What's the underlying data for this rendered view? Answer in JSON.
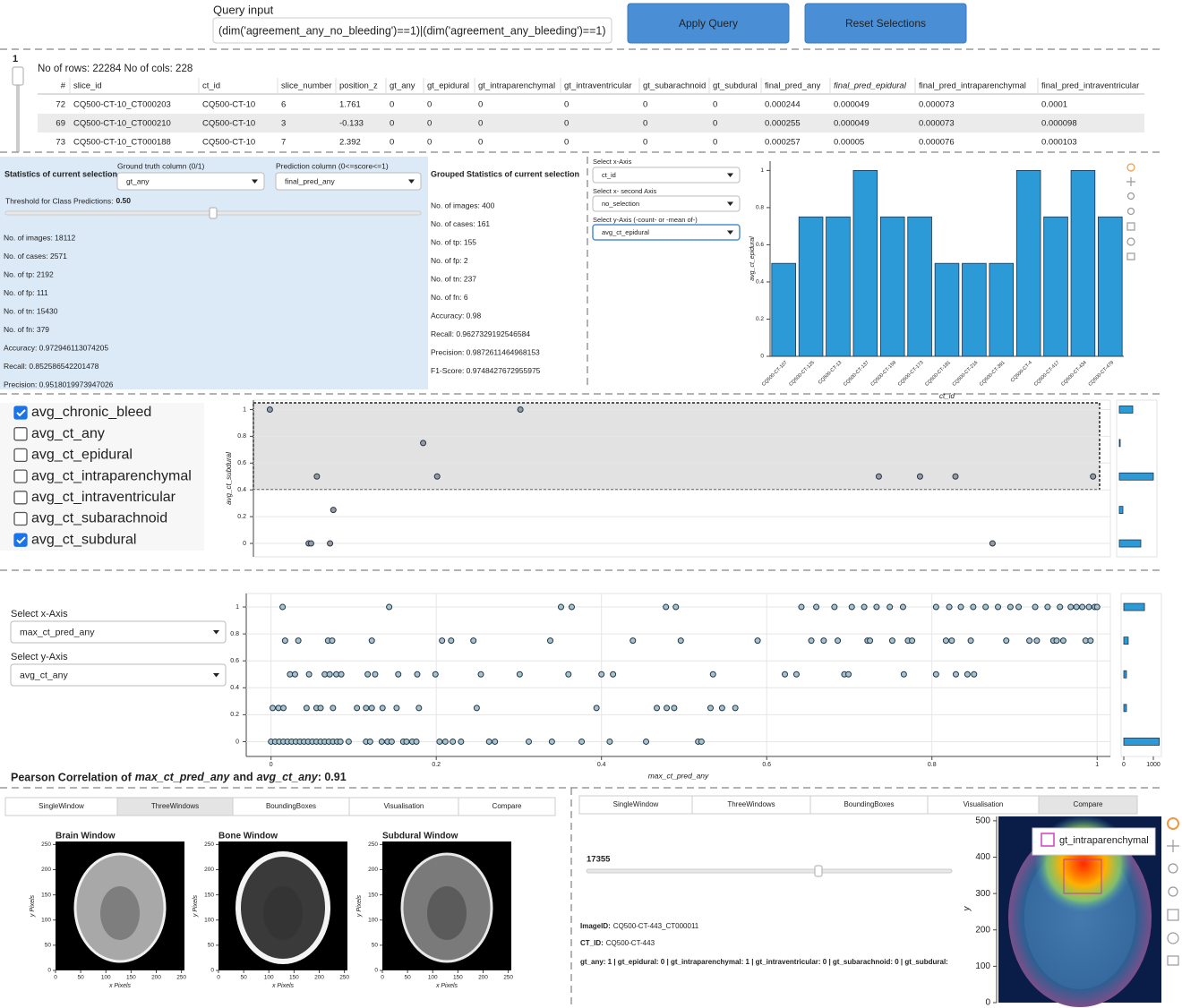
{
  "query": {
    "label": "Query input",
    "value": "(dim('agreement_any_no_bleeding')==1)|(dim('agreement_any_bleeding')==1)",
    "apply": "Apply Query",
    "reset": "Reset Selections"
  },
  "table": {
    "page": "1",
    "summary": "No of rows: 22284 No of cols: 228",
    "columns": [
      "#",
      "slice_id",
      "ct_id",
      "slice_number",
      "position_z",
      "gt_any",
      "gt_epidural",
      "gt_intraparenchymal",
      "gt_intraventricular",
      "gt_subarachnoid",
      "gt_subdural",
      "final_pred_any",
      "final_pred_epidural",
      "final_pred_intraparenchymal",
      "final_pred_intraventricular"
    ],
    "rows": [
      [
        "72",
        "CQ500-CT-10_CT000203",
        "CQ500-CT-10",
        "6",
        "1.761",
        "0",
        "0",
        "0",
        "0",
        "0",
        "0",
        "0.000244",
        "0.000049",
        "0.000073",
        "0.0001"
      ],
      [
        "69",
        "CQ500-CT-10_CT000210",
        "CQ500-CT-10",
        "3",
        "-0.133",
        "0",
        "0",
        "0",
        "0",
        "0",
        "0",
        "0.000255",
        "0.000049",
        "0.000073",
        "0.000098"
      ],
      [
        "73",
        "CQ500-CT-10_CT000188",
        "CQ500-CT-10",
        "7",
        "2.392",
        "0",
        "0",
        "0",
        "0",
        "0",
        "0",
        "0.000257",
        "0.00005",
        "0.000076",
        "0.000103"
      ]
    ]
  },
  "stats": {
    "title": "Statistics of current selection",
    "gt_label": "Ground truth column (0/1)",
    "gt_value": "gt_any",
    "pred_label": "Prediction column (0<=score<=1)",
    "pred_value": "final_pred_any",
    "threshold_label": "Threshold for Class Predictions:",
    "threshold": {
      "value": 0.5,
      "label": "0.50"
    },
    "items": [
      "No. of images: 18112",
      "No. of cases: 2571",
      "No. of tp: 2192",
      "No. of fp: 111",
      "No. of tn: 15430",
      "No. of fn: 379",
      "Accuracy: 0.972946113074205",
      "Recall: 0.852586542201478",
      "Precision: 0.9518019973947026"
    ]
  },
  "grouped_stats": {
    "title": "Grouped Statistics of current selection",
    "items": [
      "No. of images: 400",
      "No. of cases: 161",
      "No. of tp: 155",
      "No. of fp: 2",
      "No. of tn: 237",
      "No. of fn: 6",
      "Accuracy: 0.98",
      "Recall: 0.9627329192546584",
      "Precision: 0.9872611464968153",
      "F1-Score: 0.9748427672955975"
    ]
  },
  "bar_controls": {
    "x_label": "Select x-Axis",
    "x_value": "ct_id",
    "x2_label": "Select x- second Axis",
    "x2_value": "no_selection",
    "y_label": "Select y-Axis (-count- or -mean of-)",
    "y_value": "avg_ct_epidural"
  },
  "checkboxes": [
    {
      "label": "avg_chronic_bleed",
      "checked": true
    },
    {
      "label": "avg_ct_any",
      "checked": false
    },
    {
      "label": "avg_ct_epidural",
      "checked": false
    },
    {
      "label": "avg_ct_intraparenchymal",
      "checked": false
    },
    {
      "label": "avg_ct_intraventricular",
      "checked": false
    },
    {
      "label": "avg_ct_subarachnoid",
      "checked": false
    },
    {
      "label": "avg_ct_subdural",
      "checked": true
    }
  ],
  "scatter_controls": {
    "x_label": "Select x-Axis",
    "x_value": "max_ct_pred_any",
    "y_label": "Select y-Axis",
    "y_value": "avg_ct_any"
  },
  "pearson": {
    "prefix": "Pearson Correlation of",
    "x_name": "max_ct_pred_any",
    "joiner": "and",
    "y_name": "avg_ct_any",
    "suffix": ": 0.91"
  },
  "viewer_left": {
    "tabs": [
      "SingleWindow",
      "ThreeWindows",
      "BoundingBoxes",
      "Visualisation",
      "Compare"
    ],
    "active": 1,
    "panels": [
      "Brain Window",
      "Bone Window",
      "Subdural Window"
    ],
    "x_label": "x Pixels",
    "y_label": "y Pixels",
    "xlim": [
      0,
      256
    ],
    "ylim": [
      0,
      256
    ],
    "xticks": [
      0,
      50,
      100,
      150,
      200,
      250
    ],
    "yticks": [
      0,
      50,
      100,
      150,
      200,
      250
    ]
  },
  "viewer_right": {
    "tabs": [
      "SingleWindow",
      "ThreeWindows",
      "BoundingBoxes",
      "Visualisation",
      "Compare"
    ],
    "active": 4,
    "slider": "17355",
    "image_id_label": "ImageID:",
    "image_id": "CQ500-CT-443_CT000011",
    "ct_id_label": "CT_ID:",
    "ct_id": "CQ500-CT-443",
    "labels": "gt_any: 1 | gt_epidural: 0 | gt_intraparenchymal: 1 | gt_intraventricular: 0 | gt_subarachnoid: 0 | gt_subdural:",
    "y_label": "y",
    "ylim": [
      0,
      512
    ],
    "yticks": [
      0,
      100,
      200,
      300,
      400,
      500
    ],
    "legend": "gt_intraparenchymal"
  },
  "chart_data": [
    {
      "type": "bar",
      "categories": [
        "CQ500-CT-107",
        "CQ500-CT-125",
        "CQ500-CT-13",
        "CQ500-CT-137",
        "CQ500-CT-159",
        "CQ500-CT-173",
        "CQ500-CT-181",
        "CQ500-CT-216",
        "CQ500-CT-391",
        "CQ500-CT-4",
        "CQ500-CT-417",
        "CQ500-CT-434",
        "CQ500-CT-479"
      ],
      "values": [
        0.5,
        0.75,
        0.75,
        1,
        0.75,
        0.75,
        0.5,
        0.5,
        0.5,
        1,
        0.75,
        1,
        0.75
      ],
      "color": "#2b9ad6",
      "ylim": [
        0,
        1.05
      ],
      "yticks": [
        0,
        0.2,
        0.4,
        0.6,
        0.8,
        1
      ],
      "x_label": "ct_id",
      "y_label": "avg_ct_epidural"
    },
    {
      "type": "scatter",
      "x": [
        0,
        0.304,
        0.186,
        0.057,
        0.203,
        0.739,
        0.789,
        0.832,
        0.999,
        0.077,
        0.047,
        0.05,
        0.073,
        0.877
      ],
      "values": [
        1,
        1,
        0.75,
        0.5,
        0.5,
        0.5,
        0.5,
        0.5,
        0.5,
        0.25,
        0,
        0,
        0,
        0
      ],
      "color": "#9a9a9a",
      "xlim": [
        -0.02,
        1.02
      ],
      "ylim": [
        -0.1,
        1.07
      ],
      "yticks": [
        0,
        0.2,
        0.4,
        0.6,
        0.8,
        1
      ],
      "grid": true,
      "y_label": "avg_ct_subdural",
      "y_hist": {
        "y": [
          0,
          0.25,
          0.5,
          0.75,
          1
        ],
        "counts": [
          24,
          4,
          38,
          1,
          15
        ],
        "xlim": [
          0,
          40
        ],
        "color": "#2b9ad6"
      }
    },
    {
      "type": "scatter",
      "x": [
        0.014,
        0.143,
        0.351,
        0.364,
        0.478,
        0.49,
        0.642,
        0.66,
        0.682,
        0.703,
        0.718,
        0.733,
        0.749,
        0.765,
        0.805,
        0.821,
        0.835,
        0.85,
        0.865,
        0.88,
        0.895,
        0.905,
        0.925,
        0.94,
        0.955,
        0.968,
        0.975,
        0.982,
        0.99,
        0.997,
        1,
        0.017,
        0.033,
        0.069,
        0.074,
        0.122,
        0.207,
        0.218,
        0.245,
        0.338,
        0.438,
        0.496,
        0.589,
        0.654,
        0.669,
        0.686,
        0.722,
        0.725,
        0.752,
        0.771,
        0.776,
        0.817,
        0.824,
        0.847,
        0.89,
        0.918,
        0.927,
        0.947,
        0.951,
        0.959,
        0.986,
        0.992,
        0.023,
        0.029,
        0.046,
        0.065,
        0.071,
        0.079,
        0.085,
        0.117,
        0.126,
        0.154,
        0.177,
        0.199,
        0.254,
        0.301,
        0.36,
        0.4,
        0.414,
        0.535,
        0.622,
        0.636,
        0.694,
        0.699,
        0.766,
        0.805,
        0.829,
        0.843,
        0.851,
        0.002,
        0.009,
        0.015,
        0.043,
        0.055,
        0.06,
        0.075,
        0.104,
        0.115,
        0.122,
        0.135,
        0.152,
        0.179,
        0.249,
        0.394,
        0.467,
        0.479,
        0.488,
        0.532,
        0.546,
        0.562,
        0,
        0.005,
        0.01,
        0.015,
        0.02,
        0.025,
        0.03,
        0.035,
        0.04,
        0.045,
        0.05,
        0.055,
        0.06,
        0.065,
        0.07,
        0.075,
        0.08,
        0.084,
        0.094,
        0.115,
        0.12,
        0.134,
        0.141,
        0.146,
        0.16,
        0.164,
        0.171,
        0.176,
        0.204,
        0.211,
        0.22,
        0.23,
        0.264,
        0.271,
        0.312,
        0.34,
        0.376,
        0.41,
        0.454,
        0.517,
        0.521
      ],
      "values": [
        1,
        1,
        1,
        1,
        1,
        1,
        1,
        1,
        1,
        1,
        1,
        1,
        1,
        1,
        1,
        1,
        1,
        1,
        1,
        1,
        1,
        1,
        1,
        1,
        1,
        1,
        1,
        1,
        1,
        1,
        1,
        0.75,
        0.75,
        0.75,
        0.75,
        0.75,
        0.75,
        0.75,
        0.75,
        0.75,
        0.75,
        0.75,
        0.75,
        0.75,
        0.75,
        0.75,
        0.75,
        0.75,
        0.75,
        0.75,
        0.75,
        0.75,
        0.75,
        0.75,
        0.75,
        0.75,
        0.75,
        0.75,
        0.75,
        0.75,
        0.75,
        0.75,
        0.5,
        0.5,
        0.5,
        0.5,
        0.5,
        0.5,
        0.5,
        0.5,
        0.5,
        0.5,
        0.5,
        0.5,
        0.5,
        0.5,
        0.5,
        0.5,
        0.5,
        0.5,
        0.5,
        0.5,
        0.5,
        0.5,
        0.5,
        0.5,
        0.5,
        0.5,
        0.5,
        0.25,
        0.25,
        0.25,
        0.25,
        0.25,
        0.25,
        0.25,
        0.25,
        0.25,
        0.25,
        0.25,
        0.25,
        0.25,
        0.25,
        0.25,
        0.25,
        0.25,
        0.25,
        0.25,
        0.25,
        0.25,
        0,
        0,
        0,
        0,
        0,
        0,
        0,
        0,
        0,
        0,
        0,
        0,
        0,
        0,
        0,
        0,
        0,
        0,
        0,
        0,
        0,
        0,
        0,
        0,
        0,
        0,
        0,
        0,
        0,
        0,
        0,
        0,
        0,
        0,
        0,
        0,
        0,
        0,
        0,
        0,
        0
      ],
      "color": "#a8c4c8",
      "xlim": [
        -0.03,
        1.016
      ],
      "ylim": [
        -0.11,
        1.1
      ],
      "xticks": [
        0,
        0.2,
        0.4,
        0.6,
        0.8,
        1
      ],
      "yticks": [
        0,
        0.2,
        0.4,
        0.6,
        0.8,
        1
      ],
      "grid": true,
      "x_label": "max_ct_pred_any",
      "y_hist": {
        "y": [
          0,
          0.25,
          0.5,
          0.75,
          1
        ],
        "counts": [
          1200,
          90,
          90,
          150,
          700
        ],
        "xlim": [
          0,
          1000
        ],
        "xticks": [
          0,
          1000
        ],
        "color": "#2b9ad6"
      }
    }
  ]
}
